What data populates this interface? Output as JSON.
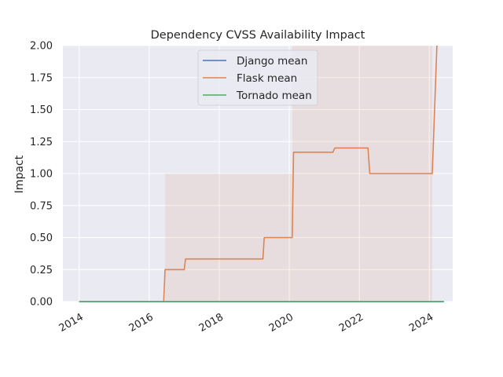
{
  "chart_data": {
    "type": "line",
    "title": "Dependency CVSS Availability Impact",
    "xlabel": "",
    "ylabel": "Impact",
    "ylim": [
      0,
      2
    ],
    "yticks": [
      "0.00",
      "0.25",
      "0.50",
      "0.75",
      "1.00",
      "1.25",
      "1.50",
      "1.75",
      "2.00"
    ],
    "xlim": [
      "2013-07-15",
      "2024-09-01"
    ],
    "xticks": [
      "2014",
      "2016",
      "2018",
      "2020",
      "2022",
      "2024"
    ],
    "grid": true,
    "legend_position": "top-center",
    "series": [
      {
        "name": "Django mean",
        "color": "#4c72b0",
        "points": [
          [
            "2014-01-01",
            0
          ],
          [
            "2024-06-01",
            0
          ]
        ]
      },
      {
        "name": "Flask mean",
        "color": "#dd8452",
        "points": [
          [
            "2016-06-01",
            0
          ],
          [
            "2016-06-15",
            0.25
          ],
          [
            "2017-01-01",
            0.25
          ],
          [
            "2017-01-15",
            0.333
          ],
          [
            "2019-04-01",
            0.333
          ],
          [
            "2019-04-15",
            0.5
          ],
          [
            "2020-02-01",
            0.5
          ],
          [
            "2020-02-15",
            1.167
          ],
          [
            "2021-04-01",
            1.167
          ],
          [
            "2021-04-20",
            1.2
          ],
          [
            "2022-04-01",
            1.2
          ],
          [
            "2022-04-20",
            1.0
          ],
          [
            "2024-02-01",
            1.0
          ],
          [
            "2024-03-20",
            2.0
          ]
        ],
        "band": [
          {
            "from": "2016-06-15",
            "to": "2020-02-01",
            "low": 0,
            "high": 1
          },
          {
            "from": "2020-02-01",
            "to": "2024-02-01",
            "low": 0,
            "high": 2
          }
        ]
      },
      {
        "name": "Tornado mean",
        "color": "#55a868",
        "points": [
          [
            "2014-01-01",
            0
          ],
          [
            "2024-06-01",
            0
          ]
        ]
      }
    ]
  }
}
